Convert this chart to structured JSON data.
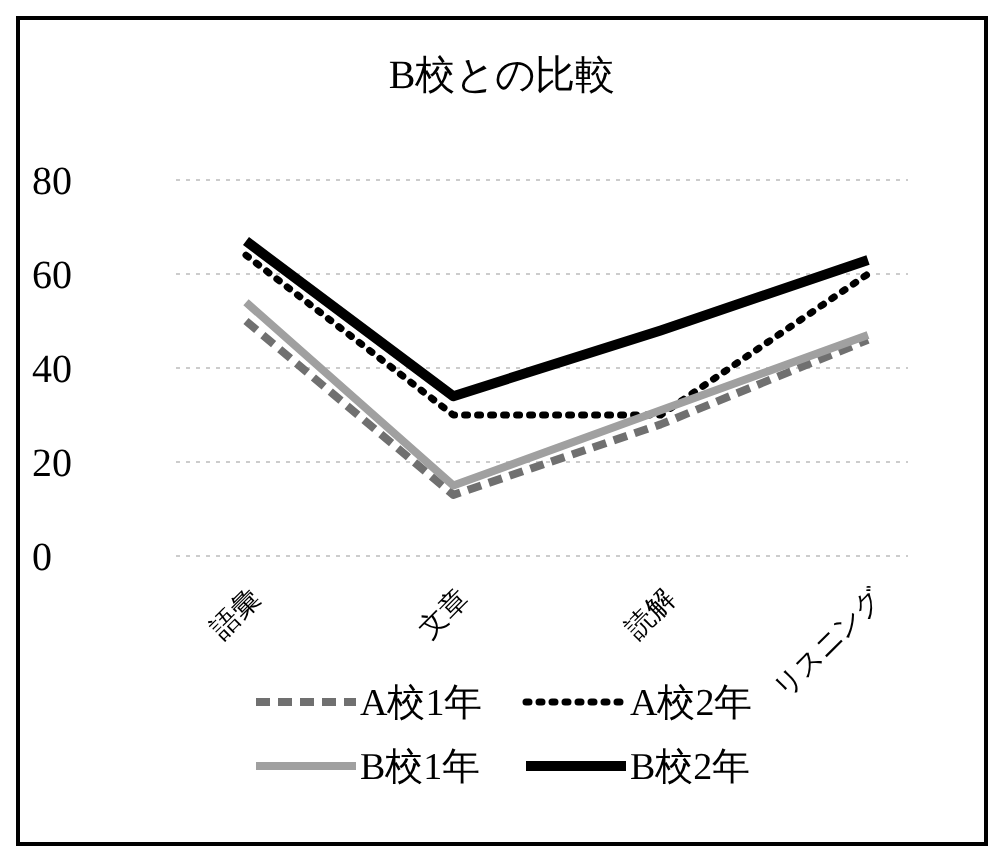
{
  "chart_data": {
    "type": "line",
    "title": "B校との比較",
    "categories": [
      "語彙",
      "文章",
      "読解",
      "リスニング"
    ],
    "series": [
      {
        "name": "A校1年",
        "color": "#707070",
        "values": [
          50,
          13,
          28,
          46
        ],
        "line_style": "dashed"
      },
      {
        "name": "A校2年",
        "color": "#000000",
        "values": [
          64,
          30,
          30,
          60
        ],
        "line_style": "dotted"
      },
      {
        "name": "B校1年",
        "color": "#a0a0a0",
        "values": [
          54,
          15,
          31,
          47
        ],
        "line_style": "solid"
      },
      {
        "name": "B校2年",
        "color": "#000000",
        "values": [
          67,
          34,
          48,
          63
        ],
        "line_style": "solid"
      }
    ],
    "ylim": [
      0,
      80
    ],
    "yticks": [
      0,
      20,
      40,
      60,
      80
    ],
    "grid": "y",
    "legend": "bottom"
  }
}
